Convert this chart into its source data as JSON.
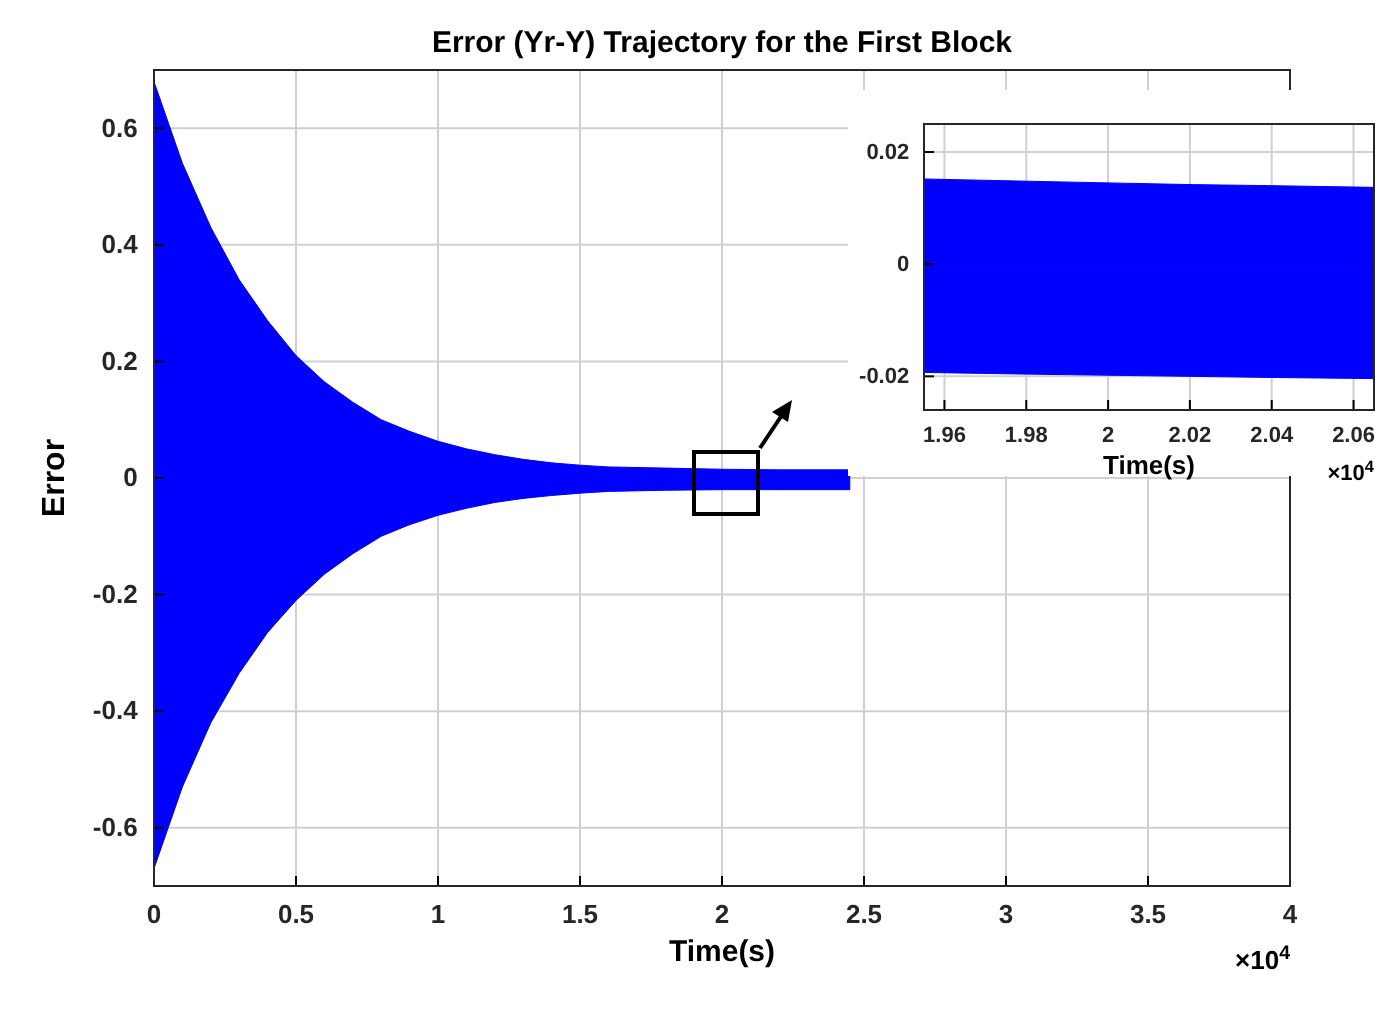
{
  "chart_data": [
    {
      "type": "area",
      "title": "Error (Yr-Y) Trajectory for the First Block",
      "xlabel": "Time(s)",
      "ylabel": "Error",
      "x": [
        0,
        0.1,
        0.2,
        0.3,
        0.4,
        0.5,
        0.6,
        0.7,
        0.8,
        0.9,
        1,
        1.1,
        1.2,
        1.3,
        1.4,
        1.5,
        1.6,
        1.8,
        2,
        2.2,
        2.45
      ],
      "series": [
        {
          "color": "#0000ff",
          "values": [
            0.68,
            0.54,
            0.43,
            0.34,
            0.27,
            0.21,
            0.165,
            0.13,
            0.1,
            0.08,
            0.063,
            0.05,
            0.04,
            0.032,
            0.026,
            0.022,
            0.019,
            0.017,
            0.015,
            0.014,
            0.014
          ]
        },
        {
          "color": "#0000ff",
          "values": [
            -0.67,
            -0.53,
            -0.42,
            -0.335,
            -0.265,
            -0.21,
            -0.165,
            -0.13,
            -0.1,
            -0.08,
            -0.064,
            -0.052,
            -0.042,
            -0.035,
            -0.03,
            -0.026,
            -0.023,
            -0.021,
            -0.02,
            -0.02,
            -0.02
          ]
        }
      ],
      "xlim": [
        0,
        4
      ],
      "xticks": [
        0,
        0.5,
        1,
        1.5,
        2,
        2.5,
        3,
        3.5,
        4
      ],
      "ylim": [
        -0.7,
        0.7
      ],
      "yticks": [
        -0.6,
        -0.4,
        -0.2,
        0,
        0.2,
        0.4,
        0.6
      ],
      "grid": true,
      "annotations": [
        "×10$^{4}$"
      ]
    },
    {
      "type": "area",
      "xlabel": "Time(s)",
      "x": [
        1.955,
        1.98,
        2,
        2.02,
        2.04,
        2.065
      ],
      "series": [
        {
          "color": "#0000ff",
          "values": [
            0.0152,
            0.0148,
            0.0145,
            0.0142,
            0.014,
            0.0137
          ]
        },
        {
          "color": "#0000ff",
          "values": [
            -0.0193,
            -0.0196,
            -0.0198,
            -0.02,
            -0.0202,
            -0.0204
          ]
        }
      ],
      "xlim": [
        1.955,
        2.065
      ],
      "xticks": [
        1.96,
        1.98,
        2,
        2.02,
        2.04,
        2.06
      ],
      "ylim": [
        -0.026,
        0.025
      ],
      "yticks": [
        -0.02,
        0,
        0.02
      ],
      "grid": true,
      "annotations": [
        "×10$^{4}$"
      ]
    }
  ]
}
